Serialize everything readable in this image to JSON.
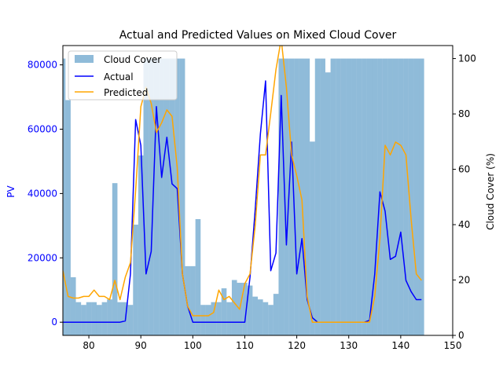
{
  "chart_data": {
    "type": "bar+line",
    "title": "Actual and Predicted Values on Mixed Cloud Cover",
    "ylabel_left": "PV",
    "ylabel_right": "Cloud Cover (%)",
    "xlabel": "",
    "xlim": [
      75,
      150
    ],
    "ylim_left": [
      -4100,
      86000
    ],
    "ylim_right": [
      0,
      104.7
    ],
    "xticks": [
      80,
      90,
      100,
      110,
      120,
      130,
      140,
      150
    ],
    "yticks_left": [
      0,
      20000,
      40000,
      60000,
      80000
    ],
    "yticks_right": [
      0,
      20,
      40,
      60,
      80,
      100
    ],
    "legend_position": "top-left",
    "colors": {
      "cloud": "#1f77b4",
      "cloud_alpha": 0.5,
      "actual": "#0000ff",
      "predicted": "#ffa500",
      "left_axis_text": "#0000ff"
    },
    "series": [
      {
        "name": "Cloud Cover",
        "kind": "bar",
        "axis": "right",
        "x": [
          75,
          76,
          77,
          78,
          79,
          80,
          81,
          82,
          83,
          84,
          85,
          86,
          87,
          88,
          89,
          90,
          91,
          92,
          93,
          94,
          95,
          96,
          97,
          98,
          99,
          100,
          101,
          102,
          103,
          104,
          105,
          106,
          107,
          108,
          109,
          110,
          111,
          112,
          113,
          114,
          115,
          116,
          117,
          118,
          119,
          120,
          121,
          122,
          123,
          124,
          125,
          126,
          127,
          128,
          129,
          130,
          131,
          132,
          133,
          134,
          135,
          136,
          137,
          138,
          139,
          140,
          141,
          142,
          143,
          144
        ],
        "values": [
          100,
          85,
          21,
          12,
          11,
          12,
          12,
          11,
          12,
          13,
          55,
          12,
          12,
          11,
          40,
          65,
          100,
          100,
          100,
          100,
          100,
          100,
          100,
          100,
          25,
          25,
          42,
          11,
          11,
          12,
          12,
          17,
          12,
          20,
          19,
          19,
          18,
          14,
          13,
          12,
          11,
          15,
          100,
          100,
          100,
          100,
          100,
          100,
          70,
          100,
          100,
          95,
          100,
          100,
          100,
          100,
          100,
          100,
          100,
          100,
          100,
          100,
          100,
          100,
          100,
          100,
          100,
          100,
          100,
          100
        ]
      },
      {
        "name": "Actual",
        "kind": "line",
        "axis": "left",
        "x": [
          75,
          76,
          77,
          78,
          79,
          80,
          81,
          82,
          83,
          84,
          85,
          86,
          87,
          88,
          89,
          90,
          91,
          92,
          93,
          94,
          95,
          96,
          97,
          98,
          99,
          100,
          101,
          102,
          103,
          104,
          105,
          106,
          107,
          108,
          109,
          110,
          111,
          112,
          113,
          114,
          115,
          116,
          117,
          118,
          119,
          120,
          121,
          122,
          123,
          124,
          125,
          126,
          127,
          128,
          129,
          130,
          131,
          132,
          133,
          134,
          135,
          136,
          137,
          138,
          139,
          140,
          141,
          142,
          143,
          144
        ],
        "values": [
          0,
          0,
          0,
          0,
          0,
          0,
          0,
          0,
          0,
          0,
          0,
          0,
          400,
          15000,
          63000,
          55000,
          15000,
          22000,
          67000,
          45000,
          57500,
          43000,
          41500,
          15000,
          5000,
          0,
          0,
          0,
          0,
          0,
          0,
          0,
          0,
          0,
          0,
          0,
          14000,
          35000,
          58500,
          75000,
          16000,
          21500,
          70500,
          24000,
          56000,
          15000,
          26000,
          7000,
          1400,
          0,
          0,
          0,
          0,
          0,
          0,
          0,
          0,
          0,
          0,
          600,
          15000,
          40500,
          34500,
          19500,
          20500,
          28000,
          13000,
          9500,
          7000,
          7000
        ]
      },
      {
        "name": "Predicted",
        "kind": "line",
        "axis": "left",
        "x": [
          75,
          76,
          77,
          78,
          79,
          80,
          81,
          82,
          83,
          84,
          85,
          86,
          87,
          88,
          89,
          90,
          91,
          92,
          93,
          94,
          95,
          96,
          97,
          98,
          99,
          100,
          101,
          102,
          103,
          104,
          105,
          106,
          107,
          108,
          109,
          110,
          111,
          112,
          113,
          114,
          115,
          116,
          117,
          118,
          119,
          120,
          121,
          122,
          123,
          124,
          125,
          126,
          127,
          128,
          129,
          130,
          131,
          132,
          133,
          134,
          135,
          136,
          137,
          138,
          139,
          140,
          141,
          142,
          143,
          144
        ],
        "values": [
          16000,
          8000,
          7500,
          7500,
          8000,
          8000,
          10000,
          8000,
          8000,
          7000,
          13000,
          7000,
          14000,
          18500,
          41000,
          67000,
          73000,
          68000,
          59000,
          62000,
          66000,
          64000,
          48000,
          15000,
          5000,
          2000,
          2000,
          2000,
          2000,
          3000,
          10000,
          7000,
          8000,
          6000,
          4000,
          12000,
          15000,
          30000,
          52000,
          52000,
          65000,
          78500,
          88000,
          73000,
          52000,
          45500,
          38000,
          8000,
          0,
          0,
          0,
          0,
          0,
          0,
          0,
          0,
          0,
          0,
          0,
          0,
          8000,
          26000,
          55000,
          52000,
          56000,
          55000,
          52000,
          32000,
          15000,
          13000
        ]
      }
    ]
  }
}
